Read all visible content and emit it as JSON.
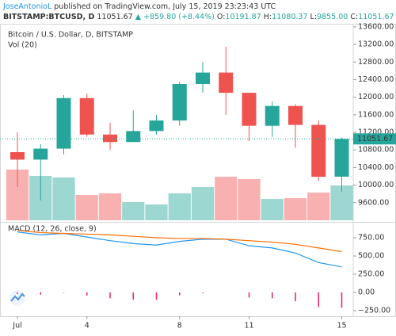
{
  "header": {
    "author": "JoseAntonioL",
    "published": "published on TradingView.com, July 15, 2019 23:23:43 UTC",
    "symbol": "BITSTAMP:BTCUSD, D",
    "price": "11051.67",
    "change": "▲ +859.80 (+8.44%)",
    "o_label": "O:",
    "o": "10191.87",
    "h_label": "H:",
    "h": "11080.37",
    "l_label": "L:",
    "l": "9855.00",
    "c_label": "C:",
    "c": "11051.67"
  },
  "chart_data": [
    {
      "type": "candlestick",
      "title": "Bitcoin / U.S. Dollar, D, BITSTAMP",
      "categories": [
        "Jul",
        null,
        null,
        "4",
        null,
        null,
        null,
        "8",
        null,
        null,
        "11",
        null,
        null,
        null,
        "15"
      ],
      "open": [
        10750,
        10580,
        10830,
        11980,
        11150,
        10980,
        11230,
        11470,
        12300,
        12560,
        12100,
        11350,
        11800,
        11370,
        10191.87
      ],
      "high": [
        11200,
        10930,
        12050,
        12080,
        11420,
        11700,
        11600,
        12350,
        12800,
        13150,
        12100,
        11900,
        11840,
        11470,
        11080.37
      ],
      "low": [
        9960,
        9650,
        10700,
        11100,
        10800,
        10980,
        11150,
        11350,
        12100,
        11600,
        11000,
        11100,
        10850,
        10100,
        9855
      ],
      "close": [
        10580,
        10830,
        11980,
        11150,
        10980,
        11230,
        11470,
        12300,
        12560,
        12100,
        11350,
        11800,
        11370,
        10190,
        11051.67
      ],
      "up_color": "#26a69a",
      "down_color": "#ef5350",
      "last_price": 11051.67,
      "ylim": [
        9200,
        13670
      ],
      "yticks": [
        {
          "value": 9600,
          "label": "9600.00"
        },
        {
          "value": 10000,
          "label": "10000.00"
        },
        {
          "value": 10400,
          "label": "10400.00"
        },
        {
          "value": 10800,
          "label": "10800.00"
        },
        {
          "value": 11200,
          "label": "11200.00"
        },
        {
          "value": 11600,
          "label": "11600.00"
        },
        {
          "value": 12000,
          "label": "12000.00"
        },
        {
          "value": 12400,
          "label": "12400.00"
        },
        {
          "value": 12800,
          "label": "12800.00"
        },
        {
          "value": 13200,
          "label": "13200.00"
        },
        {
          "value": 13600,
          "label": "13600.00"
        }
      ],
      "volume": {
        "name": "Vol (20)",
        "values": [
          25600,
          22400,
          21600,
          12800,
          13600,
          9200,
          8000,
          13600,
          16800,
          22000,
          20800,
          10800,
          11200,
          14000,
          17600
        ],
        "ylim": [
          0,
          99200
        ]
      }
    },
    {
      "type": "macd",
      "title": "MACD (12, 26, close, 9)",
      "series": [
        {
          "color": "#2196f3",
          "values": [
            830,
            790,
            810,
            760,
            710,
            670,
            650,
            700,
            730,
            730,
            640,
            610,
            540,
            410,
            350
          ]
        },
        {
          "color": "#ff6d00",
          "values": [
            850,
            820,
            810,
            800,
            790,
            770,
            750,
            740,
            740,
            730,
            710,
            690,
            660,
            610,
            560
          ]
        }
      ],
      "histogram": {
        "color": "#e91e63",
        "values": [
          -20,
          -30,
          -5,
          -40,
          -80,
          -100,
          -100,
          -40,
          -10,
          0,
          -70,
          -80,
          -120,
          -200,
          -210
        ]
      },
      "ylim": [
        -315,
        935
      ],
      "yticks": [
        {
          "value": -250,
          "label": "−250.00"
        },
        {
          "value": 0,
          "label": "0.00"
        },
        {
          "value": 250,
          "label": "250.00"
        },
        {
          "value": 500,
          "label": "500.00"
        },
        {
          "value": 750,
          "label": "750.00"
        }
      ]
    }
  ]
}
